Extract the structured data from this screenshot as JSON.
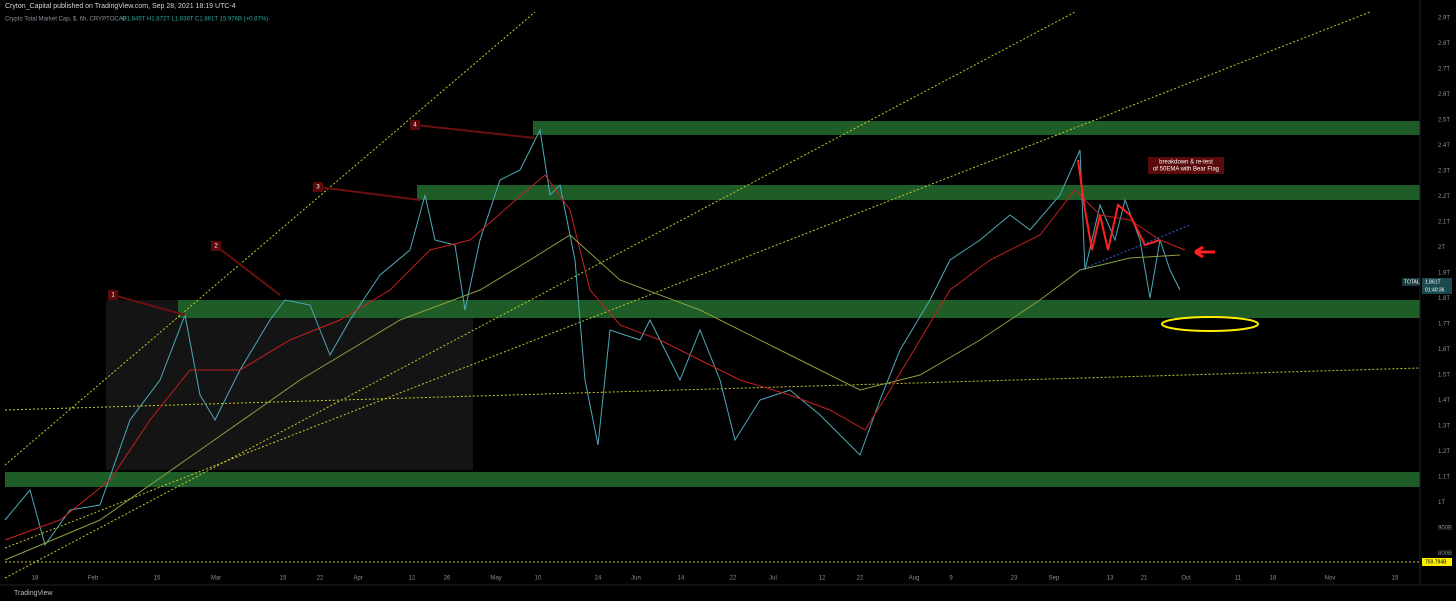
{
  "header": {
    "publisher": "Cryton_Capital published on TradingView.com, Sep 28, 2021 18:19 UTC-4",
    "symbol": "Crypto Total Market Cap, $, 6h, CRYPTOCAP",
    "ohlc": "O1.845T H1.872T L1.836T C1.861T 15.976B (+0.87%)"
  },
  "y_axis": [
    "2.9T",
    "2.8T",
    "2.7T",
    "2.6T",
    "2.5T",
    "2.4T",
    "2.3T",
    "2.2T",
    "2.1T",
    "2T",
    "1.9T",
    "1.8T",
    "1.7T",
    "1.6T",
    "1.5T",
    "1.4T",
    "1.3T",
    "1.2T",
    "1.1T",
    "1T",
    "900B",
    "800B"
  ],
  "x_axis": [
    "18",
    "Feb",
    "15",
    "Mar",
    "15",
    "22",
    "Apr",
    "12",
    "26",
    "May",
    "10",
    "24",
    "Jun",
    "14",
    "22",
    "Jul",
    "12",
    "22",
    "Aug",
    "9",
    "23",
    "Sep",
    "13",
    "21",
    "Oct",
    "11",
    "18",
    "Nov",
    "15"
  ],
  "price_tag": {
    "symbol": "TOTAL",
    "price": "1.861T",
    "countdown": "01:40:36"
  },
  "low_tag": "759.794B",
  "annotations": {
    "markers": [
      "1",
      "2",
      "3",
      "4"
    ],
    "note": "breakdown & re-test of 50EMA with Bear Flag"
  },
  "footer": "TradingView"
}
